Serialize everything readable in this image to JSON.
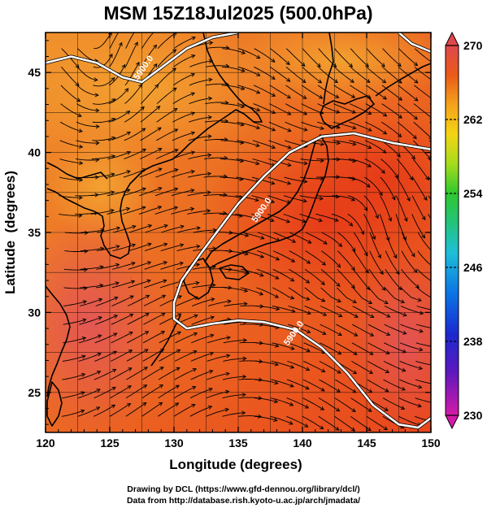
{
  "chart_data": {
    "type": "heatmap",
    "title": "MSM 15Z18Jul2025 (500.0hPa)",
    "xlabel": "Longitude (degrees)",
    "ylabel": "Latitude  (degrees)",
    "xlim": [
      120,
      150
    ],
    "ylim": [
      22.5,
      47.5
    ],
    "xticks": [
      120,
      125,
      130,
      135,
      140,
      145,
      150
    ],
    "yticks": [
      25,
      30,
      35,
      40,
      45
    ],
    "colorbar": {
      "min": 230,
      "max": 270,
      "labels": [
        "270",
        "262",
        "254",
        "246",
        "238",
        "230"
      ],
      "colors": [
        "#d61aa8",
        "#2b1fbf",
        "#0a66e0",
        "#22c2d6",
        "#24c24a",
        "#b8e01a",
        "#f6c614",
        "#f08a1c",
        "#e83a16",
        "#e0474c"
      ]
    },
    "contour": {
      "label": "5900.0",
      "lines": [
        [
          [
            120,
            45.6
          ],
          [
            122,
            46.0
          ],
          [
            124,
            45.6
          ],
          [
            126,
            44.7
          ],
          [
            127.5,
            44.4
          ],
          [
            129,
            45.3
          ],
          [
            131,
            46.5
          ],
          [
            133,
            47.2
          ],
          [
            135,
            47.5
          ]
        ],
        [
          [
            147.5,
            47.5
          ],
          [
            148.5,
            46.8
          ],
          [
            150,
            46.3
          ]
        ],
        [
          [
            150,
            40.2
          ],
          [
            147,
            40.6
          ],
          [
            144,
            41.2
          ],
          [
            141.5,
            41.0
          ],
          [
            139,
            40.0
          ],
          [
            137,
            38.5
          ],
          [
            135,
            36.8
          ],
          [
            133.5,
            35.2
          ],
          [
            132,
            33.6
          ],
          [
            130.6,
            32.0
          ],
          [
            130.0,
            30.6
          ],
          [
            130.0,
            29.6
          ],
          [
            131.0,
            29.0
          ],
          [
            133,
            29.3
          ],
          [
            135,
            29.5
          ],
          [
            137,
            29.4
          ],
          [
            139.5,
            28.9
          ],
          [
            141.5,
            27.8
          ],
          [
            143.5,
            26.2
          ],
          [
            145.5,
            24.2
          ],
          [
            147.5,
            23.0
          ],
          [
            149,
            22.8
          ],
          [
            150,
            23.4
          ]
        ]
      ],
      "labels_at": [
        [
          127.8,
          45.2
        ],
        [
          137.0,
          36.3
        ],
        [
          139.5,
          28.6
        ]
      ]
    },
    "wind": "streamlines"
  },
  "credits": [
    "Drawing by DCL (https://www.gfd-dennou.org/library/dcl/)",
    "Data from http://database.rish.kyoto-u.ac.jp/arch/jmadata/"
  ]
}
